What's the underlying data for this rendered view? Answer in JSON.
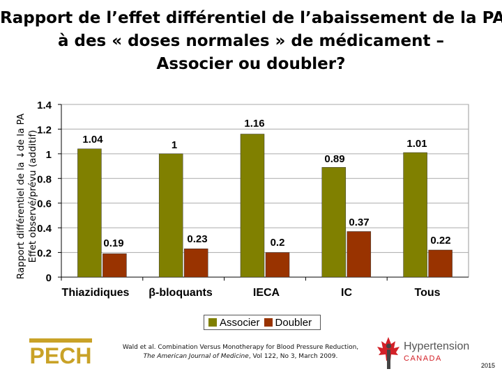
{
  "title": {
    "line1": "Rapport de l’effet différentiel de l’abaissement de la PA",
    "line2": "à des « doses normales » de médicament –",
    "line3": "Associer ou doubler?"
  },
  "y_axis_label": {
    "line1": "Rapport différentiel de la ↓de la PA",
    "line2": "Effet observé/prévu (additif)"
  },
  "chart_data": {
    "type": "bar",
    "categories": [
      "Thiazidiques",
      "β-bloquants",
      "IECA",
      "IC",
      "Tous"
    ],
    "series": [
      {
        "name": "Associer",
        "values": [
          1.04,
          1,
          1.16,
          0.89,
          1.01
        ],
        "labels": [
          "1.04",
          "1",
          "1.16",
          "0.89",
          "1.01"
        ],
        "color": "#808000"
      },
      {
        "name": "Doubler",
        "values": [
          0.19,
          0.23,
          0.2,
          0.37,
          0.22
        ],
        "labels": [
          "0.19",
          "0.23",
          "0.2",
          "0.37",
          "0.22"
        ],
        "color": "#993300"
      }
    ],
    "ylim": [
      0,
      1.4
    ],
    "yticks": [
      "0",
      "0.2",
      "0.4",
      "0.6",
      "0.8",
      "1",
      "1.2",
      "1.4"
    ],
    "grid": true,
    "legend_position": "bottom"
  },
  "citation": {
    "line1": "Wald et al. Combination Versus Monotherapy for Blood Pressure Reduction,",
    "line2_journal": "The American Journal of Medicine",
    "line2_rest": ", Vol 122, No 3, March 2009."
  },
  "logos": {
    "pech": "PECH",
    "hypertension": "Hypertension",
    "canada": "CANADA"
  },
  "year": "2015",
  "colors": {
    "associer": "#808000",
    "doubler": "#993300",
    "plot_bg": "#ffffff",
    "grid": "#aaaaaa"
  }
}
